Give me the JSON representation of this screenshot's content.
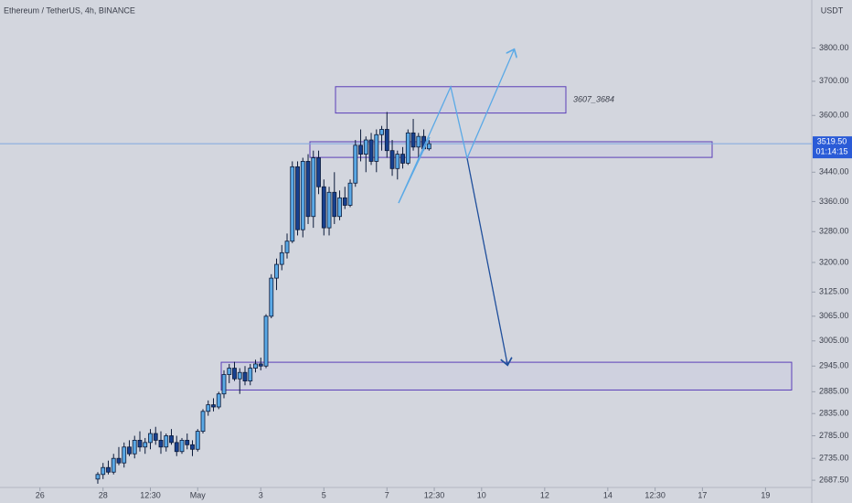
{
  "chart_data": {
    "type": "candlestick",
    "title": "Ethereum / TetherUS, 4h, BINANCE",
    "currency": "USDT",
    "countdown": "01:14:15",
    "last_price": {
      "value": 3519.5,
      "label": "3519.50"
    },
    "log_scale": true,
    "up_color": "#5aa9e6",
    "down_color": "#17408f",
    "x": [
      11,
      12,
      13,
      14,
      15,
      16,
      17,
      18,
      19,
      20,
      21,
      22,
      23,
      24,
      25,
      26,
      27,
      28,
      29,
      30,
      31,
      32,
      33,
      34,
      35,
      36,
      37,
      38,
      39,
      40,
      41,
      42,
      43,
      44,
      45,
      46,
      47,
      48,
      49,
      50,
      51,
      52,
      53,
      54,
      55,
      56,
      57,
      58,
      59,
      60,
      61,
      62,
      63,
      64,
      65,
      66,
      67,
      68,
      69,
      70,
      71,
      72,
      73,
      74
    ],
    "open": [
      2690,
      2700,
      2715,
      2705,
      2735,
      2725,
      2760,
      2745,
      2775,
      2760,
      2770,
      2790,
      2775,
      2760,
      2785,
      2770,
      2750,
      2775,
      2765,
      2755,
      2795,
      2840,
      2855,
      2850,
      2880,
      2925,
      2940,
      2915,
      2930,
      2910,
      2940,
      2950,
      2945,
      3065,
      3160,
      3195,
      3225,
      3255,
      3455,
      3285,
      3470,
      3320,
      3480,
      3400,
      3290,
      3385,
      3320,
      3370,
      3350,
      3410,
      3515,
      3490,
      3530,
      3470,
      3545,
      3560,
      3500,
      3450,
      3490,
      3465,
      3550,
      3510,
      3540,
      3505
    ],
    "high": [
      2705,
      2725,
      2730,
      2745,
      2760,
      2770,
      2775,
      2785,
      2795,
      2780,
      2800,
      2805,
      2795,
      2790,
      2800,
      2785,
      2780,
      2790,
      2775,
      2800,
      2845,
      2865,
      2870,
      2885,
      2935,
      2950,
      2955,
      2940,
      2945,
      2950,
      2960,
      2965,
      3070,
      3170,
      3210,
      3245,
      3275,
      3470,
      3470,
      3480,
      3490,
      3500,
      3500,
      3420,
      3400,
      3440,
      3390,
      3400,
      3420,
      3530,
      3560,
      3540,
      3550,
      3560,
      3570,
      3610,
      3530,
      3500,
      3510,
      3560,
      3590,
      3550,
      3560,
      3530
    ],
    "low": [
      2680,
      2690,
      2700,
      2700,
      2720,
      2715,
      2740,
      2735,
      2750,
      2745,
      2755,
      2765,
      2745,
      2750,
      2765,
      2740,
      2745,
      2755,
      2740,
      2750,
      2790,
      2830,
      2840,
      2845,
      2870,
      2905,
      2910,
      2880,
      2900,
      2900,
      2930,
      2935,
      2940,
      3060,
      3130,
      3180,
      3210,
      3250,
      3270,
      3265,
      3300,
      3290,
      3380,
      3270,
      3270,
      3300,
      3310,
      3340,
      3345,
      3400,
      3470,
      3440,
      3460,
      3440,
      3500,
      3480,
      3430,
      3420,
      3450,
      3460,
      3500,
      3480,
      3500,
      3500
    ],
    "close": [
      2700,
      2715,
      2705,
      2735,
      2725,
      2760,
      2745,
      2775,
      2760,
      2770,
      2790,
      2775,
      2760,
      2785,
      2770,
      2750,
      2775,
      2765,
      2755,
      2795,
      2840,
      2855,
      2850,
      2880,
      2925,
      2940,
      2915,
      2930,
      2910,
      2940,
      2950,
      2945,
      3065,
      3160,
      3195,
      3225,
      3255,
      3455,
      3285,
      3470,
      3320,
      3480,
      3400,
      3290,
      3385,
      3320,
      3370,
      3350,
      3410,
      3515,
      3490,
      3530,
      3470,
      3545,
      3560,
      3500,
      3450,
      3490,
      3465,
      3550,
      3510,
      3540,
      3505,
      3519.5
    ],
    "xlim": [
      -7.6,
      146.8
    ],
    "xticks": [
      {
        "value": 0,
        "label": "26"
      },
      {
        "value": 12,
        "label": "28"
      },
      {
        "value": 21,
        "label": "12:30"
      },
      {
        "value": 30,
        "label": "May"
      },
      {
        "value": 42,
        "label": "3"
      },
      {
        "value": 54,
        "label": "5"
      },
      {
        "value": 66,
        "label": "7"
      },
      {
        "value": 75,
        "label": "12:30"
      },
      {
        "value": 84,
        "label": "10"
      },
      {
        "value": 96,
        "label": "12"
      },
      {
        "value": 108,
        "label": "14"
      },
      {
        "value": 117,
        "label": "12:30"
      },
      {
        "value": 126,
        "label": "17"
      },
      {
        "value": 138,
        "label": "19"
      }
    ],
    "ylim": [
      2672,
      3949
    ],
    "yticks": [
      {
        "value": 3800,
        "label": "3800.00"
      },
      {
        "value": 3700,
        "label": "3700.00"
      },
      {
        "value": 3600,
        "label": "3600.00"
      },
      {
        "value": 3440,
        "label": "3440.00"
      },
      {
        "value": 3360,
        "label": "3360.00"
      },
      {
        "value": 3280,
        "label": "3280.00"
      },
      {
        "value": 3200,
        "label": "3200.00"
      },
      {
        "value": 3125,
        "label": "3125.00"
      },
      {
        "value": 3065,
        "label": "3065.00"
      },
      {
        "value": 3005,
        "label": "3005.00"
      },
      {
        "value": 2945,
        "label": "2945.00"
      },
      {
        "value": 2885,
        "label": "2885.00"
      },
      {
        "value": 2835,
        "label": "2835.00"
      },
      {
        "value": 2785,
        "label": "2785.00"
      },
      {
        "value": 2735,
        "label": "2735.00"
      },
      {
        "value": 2687.5,
        "label": "2687.50"
      }
    ],
    "zones": [
      {
        "top": 3684,
        "bottom": 3607
      },
      {
        "top": 3525,
        "bottom": 3481
      },
      {
        "top": 2954,
        "bottom": 2889
      }
    ],
    "annotations": [
      "3607_3684"
    ]
  }
}
